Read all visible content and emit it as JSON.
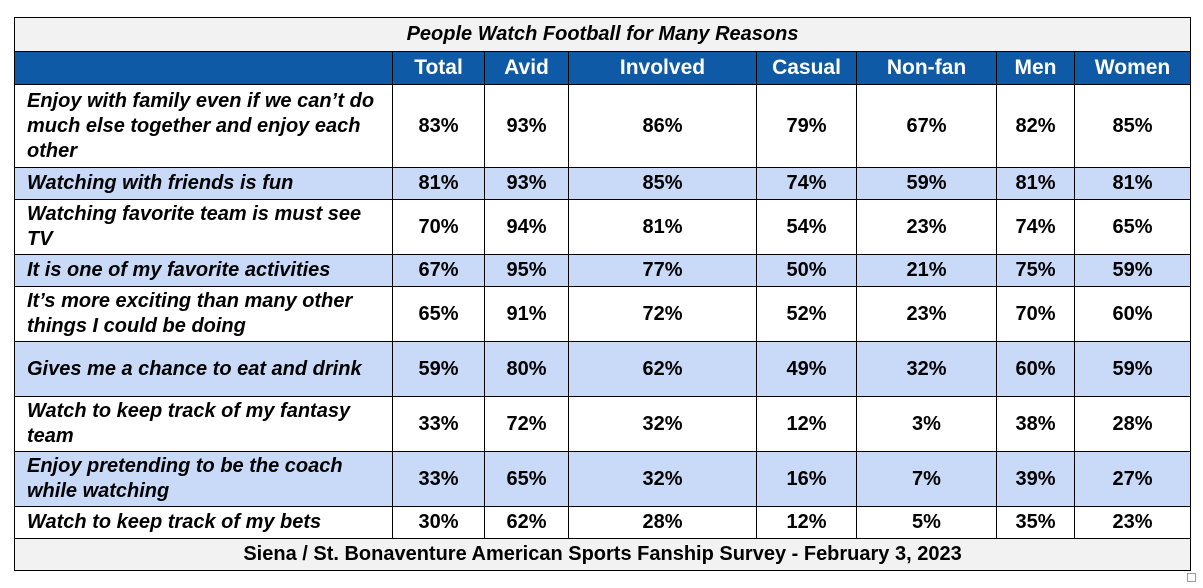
{
  "table": {
    "title": "People Watch Football for Many Reasons",
    "columns": [
      "Total",
      "Avid",
      "Involved",
      "Casual",
      "Non-fan",
      "Men",
      "Women"
    ],
    "rows": [
      {
        "label": "Enjoy with family even if we can’t do much else together and enjoy each other",
        "values": [
          "83%",
          "93%",
          "86%",
          "79%",
          "67%",
          "82%",
          "85%"
        ]
      },
      {
        "label": "Watching with friends is fun",
        "values": [
          "81%",
          "93%",
          "85%",
          "74%",
          "59%",
          "81%",
          "81%"
        ]
      },
      {
        "label": "Watching favorite team is must see TV",
        "values": [
          "70%",
          "94%",
          "81%",
          "54%",
          "23%",
          "74%",
          "65%"
        ]
      },
      {
        "label": "It is one of my favorite activities",
        "values": [
          "67%",
          "95%",
          "77%",
          "50%",
          "21%",
          "75%",
          "59%"
        ]
      },
      {
        "label": "It’s more exciting than many other things I could be doing",
        "values": [
          "65%",
          "91%",
          "72%",
          "52%",
          "23%",
          "70%",
          "60%"
        ]
      },
      {
        "label": "Gives me a chance to eat and drink",
        "values": [
          "59%",
          "80%",
          "62%",
          "49%",
          "32%",
          "60%",
          "59%"
        ]
      },
      {
        "label": "Watch to keep track of my fantasy team",
        "values": [
          "33%",
          "72%",
          "32%",
          "12%",
          "3%",
          "38%",
          "28%"
        ]
      },
      {
        "label": "Enjoy pretending to be the coach while watching",
        "values": [
          "33%",
          "65%",
          "32%",
          "16%",
          "7%",
          "39%",
          "27%"
        ]
      },
      {
        "label": "Watch to keep track of my bets",
        "values": [
          "30%",
          "62%",
          "28%",
          "12%",
          "5%",
          "35%",
          "23%"
        ]
      }
    ],
    "footer": "Siena / St. Bonaventure American Sports Fanship Survey - February 3, 2023"
  },
  "colors": {
    "header_bg": "#0e5aa6",
    "alt_row_bg": "#c9daf8",
    "title_bg": "#f2f2f2"
  }
}
